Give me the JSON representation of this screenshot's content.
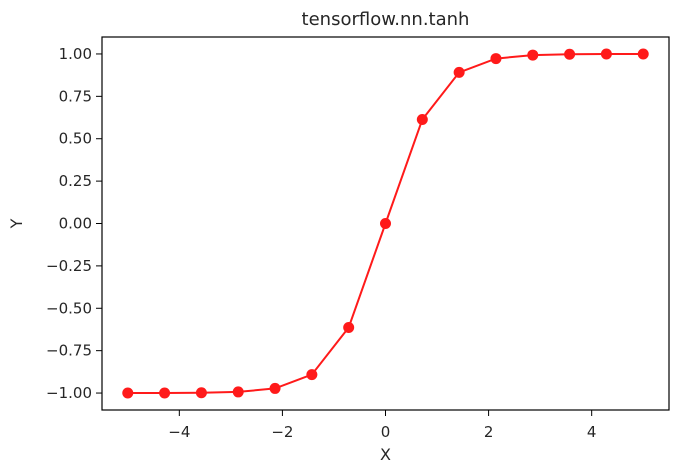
{
  "chart_data": {
    "type": "line",
    "title": "tensorflow.nn.tanh",
    "xlabel": "X",
    "ylabel": "Y",
    "xlim": [
      -5.5,
      5.5
    ],
    "ylim": [
      -1.1,
      1.1
    ],
    "grid": false,
    "x_ticks": [
      -4,
      -2,
      0,
      2,
      4
    ],
    "x_tick_labels": [
      "−4",
      "−2",
      "0",
      "2",
      "4"
    ],
    "y_ticks": [
      1.0,
      0.75,
      0.5,
      0.25,
      0.0,
      -0.25,
      -0.5,
      -0.75,
      -1.0
    ],
    "y_tick_labels": [
      "1.00",
      "0.75",
      "0.50",
      "0.25",
      "0.00",
      "−0.25",
      "−0.50",
      "−0.75",
      "−1.00"
    ],
    "series": [
      {
        "color": "#ff1a1a",
        "marker": "circle",
        "x": [
          -5.0,
          -4.2857,
          -3.5714,
          -2.8571,
          -2.1429,
          -1.4286,
          -0.7143,
          0.0,
          0.7143,
          1.4286,
          2.1429,
          2.8571,
          3.5714,
          4.2857,
          5.0
        ],
        "y": [
          -0.9999,
          -0.9996,
          -0.9984,
          -0.9934,
          -0.9728,
          -0.8911,
          -0.6135,
          0.0,
          0.6135,
          0.8911,
          0.9728,
          0.9934,
          0.9984,
          0.9996,
          0.9999
        ]
      }
    ]
  }
}
